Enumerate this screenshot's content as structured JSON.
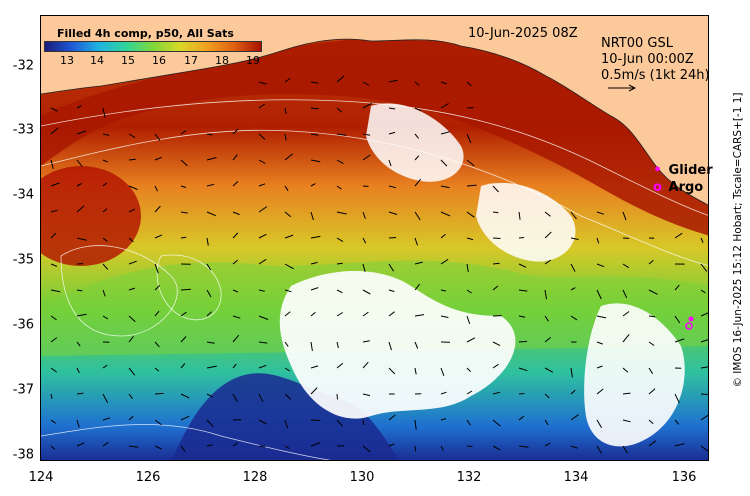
{
  "colorbar": {
    "title": "Filled 4h comp, p50, All Sats",
    "ticks": [
      "13",
      "14",
      "15",
      "16",
      "17",
      "18",
      "19"
    ],
    "range": [
      12.5,
      19.5
    ]
  },
  "date_label": "10-Jun-2025 08Z",
  "nrt": {
    "line1": "NRT00 GSL",
    "line2": "10-Jun 00:00Z",
    "line3": "0.5m/s (1kt 24h)"
  },
  "legend": {
    "glider": "Glider",
    "argo": "Argo",
    "glider_color": "#ff00ff",
    "argo_color": "#ff00ff"
  },
  "axes": {
    "y_ticks": [
      "-32",
      "-33",
      "-34",
      "-35",
      "-36",
      "-37",
      "-38"
    ],
    "x_ticks": [
      "124",
      "126",
      "128",
      "130",
      "132",
      "134",
      "136"
    ],
    "lon_range": [
      124,
      136.5
    ],
    "lat_range": [
      -31.3,
      -38.2
    ]
  },
  "side_label": "© IMOS 16-Jun-2025 15:12 Hobart; Tscale=CARS+[-1 1]",
  "colors": {
    "land": "#fcc99a",
    "warm": "#a81000",
    "cool": "#1a1a7a"
  }
}
